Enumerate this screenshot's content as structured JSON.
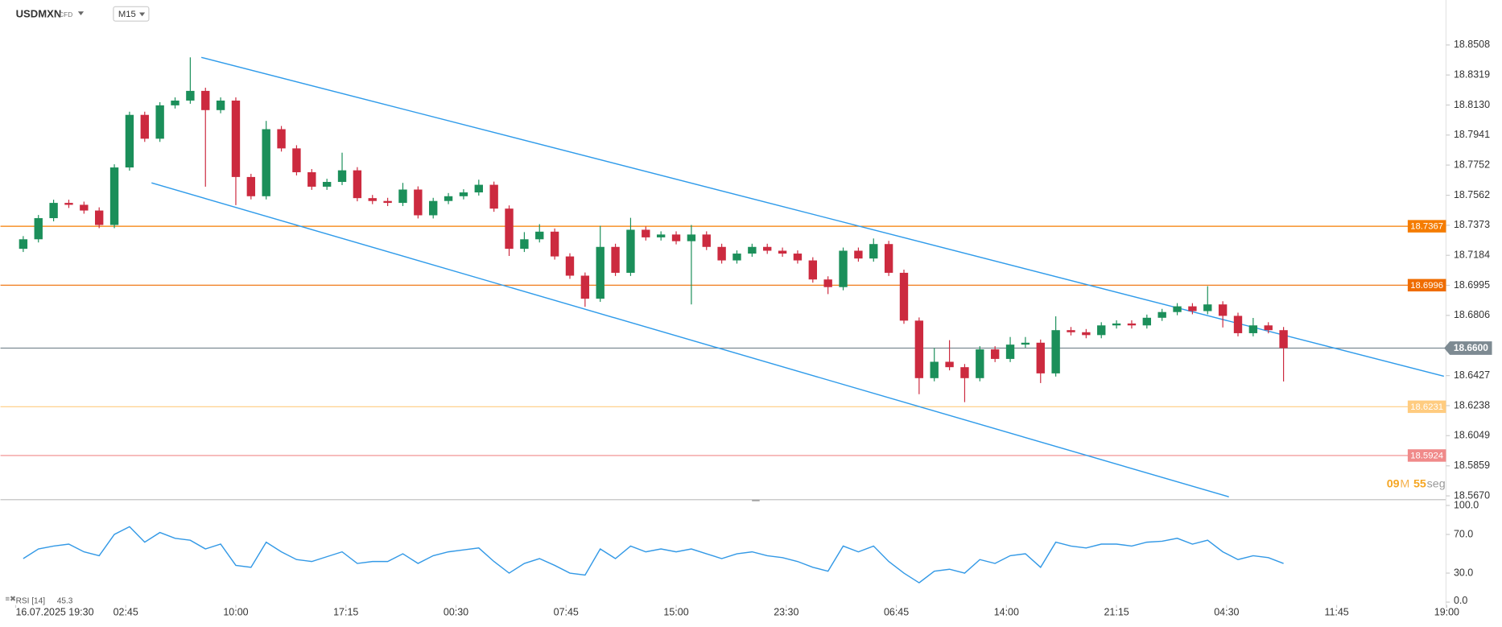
{
  "chart_data": {
    "type": "candlestick",
    "symbol": "USDMXN",
    "instrument": "CFD",
    "timeframe": "M15",
    "up_color": "#1b8f5a",
    "down_color": "#cc2a3f",
    "xlim": [
      -1.5,
      93.7
    ],
    "ylim": [
      18.5646,
      18.8791
    ],
    "xticks": [
      {
        "value": -0.5,
        "label": "16.07.2025 19:30"
      },
      {
        "value": 6.75,
        "label": "02:45"
      },
      {
        "value": 14,
        "label": "10:00"
      },
      {
        "value": 21.25,
        "label": "17:15"
      },
      {
        "value": 28.5,
        "label": "00:30"
      },
      {
        "value": 35.75,
        "label": "07:45"
      },
      {
        "value": 43,
        "label": "15:00"
      },
      {
        "value": 50.25,
        "label": "23:30"
      },
      {
        "value": 57.5,
        "label": "06:45"
      },
      {
        "value": 64.75,
        "label": "14:00"
      },
      {
        "value": 72,
        "label": "21:15"
      },
      {
        "value": 79.25,
        "label": "04:30"
      },
      {
        "value": 86.5,
        "label": "11:45"
      },
      {
        "value": 93.75,
        "label": "19:00"
      }
    ],
    "yticks": [
      18.8508,
      18.8319,
      {
        "value": 18.813,
        "label": "18.8130"
      },
      18.7941,
      18.7752,
      18.7562,
      18.7373,
      18.7184,
      18.6995,
      18.6806,
      18.6427,
      18.6238,
      18.6049,
      18.5859,
      {
        "value": 18.567,
        "label": "18.5670"
      }
    ],
    "open": [
      18.7225,
      18.7285,
      18.7418,
      18.7514,
      18.7502,
      18.7466,
      18.7375,
      18.7737,
      18.8068,
      18.7918,
      18.8128,
      18.8158,
      18.8219,
      18.8098,
      18.8158,
      18.7677,
      18.7556,
      18.7978,
      18.7857,
      18.7707,
      18.7616,
      18.7646,
      18.7719,
      18.7544,
      18.7526,
      18.7514,
      18.7598,
      18.7436,
      18.7526,
      18.7556,
      18.758,
      18.7628,
      18.7478,
      18.7225,
      18.7285,
      18.7333,
      18.7177,
      18.7056,
      18.6911,
      18.7237,
      18.7074,
      18.7345,
      18.7297,
      18.7315,
      18.7273,
      18.7315,
      18.7237,
      18.7152,
      18.7195,
      18.7237,
      18.7213,
      18.7195,
      18.7152,
      18.7032,
      18.6984,
      18.7213,
      18.7164,
      18.7255,
      18.7074,
      18.6773,
      18.6411,
      18.6514,
      18.648,
      18.6411,
      18.6592,
      18.6532,
      18.6622,
      18.6634,
      18.6441,
      18.6713,
      18.67,
      18.6682,
      18.6743,
      18.6755,
      18.6743,
      18.6791,
      18.6827,
      18.6863,
      18.6833,
      18.6875,
      18.6803,
      18.6694,
      18.6743,
      18.6713
    ],
    "high": [
      18.7305,
      18.7438,
      18.7534,
      18.7534,
      18.7522,
      18.7486,
      18.7757,
      18.8088,
      18.8088,
      18.8148,
      18.8178,
      18.843,
      18.8239,
      18.8178,
      18.8178,
      18.7697,
      18.803,
      18.7998,
      18.7877,
      18.7727,
      18.7666,
      18.783,
      18.7739,
      18.7564,
      18.7546,
      18.764,
      18.7618,
      18.7546,
      18.7576,
      18.76,
      18.766,
      18.7648,
      18.7498,
      18.733,
      18.738,
      18.7353,
      18.7197,
      18.7076,
      18.737,
      18.7257,
      18.742,
      18.7365,
      18.7335,
      18.7335,
      18.7375,
      18.7335,
      18.7257,
      18.7215,
      18.7257,
      18.7257,
      18.7233,
      18.7215,
      18.7172,
      18.7052,
      18.7233,
      18.7233,
      18.729,
      18.7275,
      18.7094,
      18.6793,
      18.66,
      18.665,
      18.65,
      18.6612,
      18.6612,
      18.667,
      18.667,
      18.6654,
      18.68,
      18.6733,
      18.672,
      18.6763,
      18.6775,
      18.6775,
      18.6811,
      18.6847,
      18.6883,
      18.6883,
      18.699,
      18.6895,
      18.6823,
      18.679,
      18.6763,
      18.6733
    ],
    "low": [
      18.7205,
      18.7265,
      18.7398,
      18.7482,
      18.7446,
      18.7355,
      18.7355,
      18.7717,
      18.7898,
      18.7898,
      18.8108,
      18.8138,
      18.7616,
      18.8078,
      18.75,
      18.7536,
      18.7536,
      18.7837,
      18.7687,
      18.7596,
      18.7596,
      18.7626,
      18.7524,
      18.7506,
      18.7494,
      18.7494,
      18.7416,
      18.7416,
      18.7506,
      18.7536,
      18.756,
      18.7458,
      18.718,
      18.7205,
      18.7265,
      18.7157,
      18.7036,
      18.686,
      18.6891,
      18.7054,
      18.7054,
      18.7277,
      18.7277,
      18.7253,
      18.6875,
      18.7217,
      18.7132,
      18.7132,
      18.7175,
      18.7193,
      18.7175,
      18.7132,
      18.7012,
      18.694,
      18.6964,
      18.7144,
      18.7144,
      18.7054,
      18.6753,
      18.631,
      18.6391,
      18.646,
      18.626,
      18.6391,
      18.6512,
      18.6512,
      18.6602,
      18.638,
      18.6421,
      18.668,
      18.6662,
      18.6662,
      18.6723,
      18.6723,
      18.6723,
      18.6771,
      18.6807,
      18.6813,
      18.6813,
      18.673,
      18.6674,
      18.6674,
      18.6693,
      18.639
    ],
    "close": [
      18.7285,
      18.7418,
      18.7514,
      18.7502,
      18.7466,
      18.7375,
      18.7737,
      18.8068,
      18.7918,
      18.8128,
      18.8158,
      18.8219,
      18.8098,
      18.8158,
      18.7677,
      18.7556,
      18.7978,
      18.7857,
      18.7707,
      18.7616,
      18.7646,
      18.7719,
      18.7544,
      18.7526,
      18.7514,
      18.7598,
      18.7436,
      18.7526,
      18.7556,
      18.758,
      18.7628,
      18.7478,
      18.7225,
      18.7285,
      18.7333,
      18.7177,
      18.7056,
      18.6911,
      18.7237,
      18.7074,
      18.7345,
      18.7297,
      18.7315,
      18.7273,
      18.7315,
      18.7237,
      18.7152,
      18.7195,
      18.7237,
      18.7213,
      18.7195,
      18.7152,
      18.7032,
      18.6984,
      18.7213,
      18.7164,
      18.7255,
      18.7074,
      18.6773,
      18.6411,
      18.6514,
      18.648,
      18.6411,
      18.6592,
      18.6532,
      18.6622,
      18.6634,
      18.6441,
      18.6713,
      18.67,
      18.6682,
      18.6743,
      18.6755,
      18.6743,
      18.6791,
      18.6827,
      18.6863,
      18.6833,
      18.6875,
      18.6803,
      18.6694,
      18.6743,
      18.6713,
      18.66
    ],
    "levels": [
      {
        "value": 18.7367,
        "color": "#f57c00"
      },
      {
        "value": 18.6996,
        "color": "#ef6c00"
      },
      {
        "value": 18.6231,
        "color": "#ffcc80"
      },
      {
        "value": 18.5924,
        "color": "#f08a8a"
      }
    ],
    "last_price": {
      "value": 18.66,
      "label": "18.6600",
      "color": "#7d8a92"
    },
    "trendlines": [
      {
        "color": "#2f9bea",
        "x": [
          11.73,
          93.56
        ],
        "y": [
          18.843,
          18.6423
        ]
      },
      {
        "color": "#2f9bea",
        "x": [
          8.45,
          79.4
        ],
        "y": [
          18.764,
          18.5664
        ]
      }
    ],
    "countdown": {
      "minutes": "09",
      "minutes_unit": "M",
      "seconds": "55",
      "seconds_unit": "seg"
    },
    "rsi": {
      "name": "RSI [14]",
      "last": 45.3,
      "color": "#3399e6",
      "ylim": [
        0,
        100
      ],
      "yticks": [
        {
          "value": 100,
          "label": "100.0"
        },
        {
          "value": 70,
          "label": "70.0"
        },
        {
          "value": 30,
          "label": "30.0"
        },
        {
          "value": 0,
          "label": "0.0"
        }
      ],
      "values": [
        45,
        55,
        58,
        60,
        52,
        48,
        70,
        78,
        62,
        72,
        66,
        64,
        55,
        60,
        38,
        36,
        62,
        52,
        44,
        42,
        47,
        52,
        40,
        42,
        42,
        50,
        40,
        48,
        52,
        54,
        56,
        42,
        30,
        40,
        45,
        38,
        30,
        28,
        55,
        45,
        58,
        52,
        55,
        52,
        55,
        50,
        45,
        50,
        52,
        48,
        46,
        42,
        36,
        32,
        58,
        52,
        58,
        42,
        30,
        20,
        32,
        34,
        30,
        44,
        40,
        48,
        50,
        36,
        62,
        58,
        56,
        60,
        60,
        58,
        62,
        63,
        66,
        60,
        64,
        52,
        44,
        48,
        46,
        40
      ]
    }
  }
}
